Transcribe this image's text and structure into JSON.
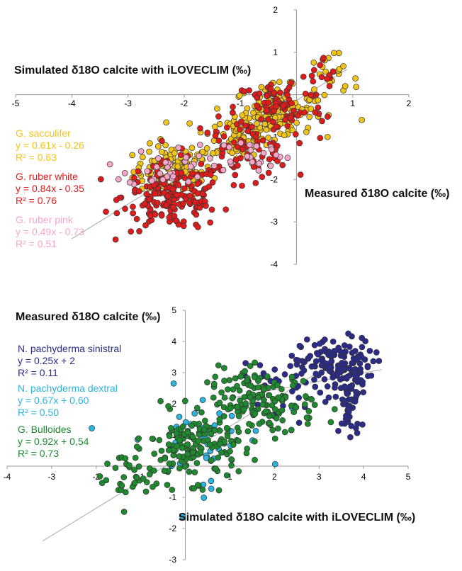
{
  "chart_data": [
    {
      "type": "scatter",
      "xlabel": "Measured δ18O calcite (‰)",
      "ylabel": "Simulated δ18O calcite with iLOVECLIM (‰)",
      "xlim": [
        -5,
        2
      ],
      "ylim": [
        -4,
        2
      ],
      "xticks": [
        "-5",
        "-4",
        "-3",
        "-2",
        "-1",
        "0",
        "1",
        "2"
      ],
      "yticks": [
        "-4",
        "-3",
        "-2",
        "-1",
        "0",
        "1",
        "2"
      ],
      "trend_line": {
        "x": [
          -4.0,
          0.9
        ],
        "y": [
          -3.4,
          0.6
        ]
      },
      "series": [
        {
          "name": "G. sacculifer",
          "equation": "y = 0.61x - 0.26",
          "r2": "R² = 0.63",
          "color": "#f2c418",
          "clusters": [
            {
              "cx": -2.2,
              "cy": -1.8,
              "sx": 0.35,
              "sy": 0.3,
              "n": 120
            },
            {
              "cx": -1.1,
              "cy": -1.0,
              "sx": 0.35,
              "sy": 0.3,
              "n": 60
            },
            {
              "cx": -0.4,
              "cy": -0.4,
              "sx": 0.35,
              "sy": 0.3,
              "n": 130
            },
            {
              "cx": 0.6,
              "cy": 0.3,
              "sx": 0.25,
              "sy": 0.35,
              "n": 25
            }
          ]
        },
        {
          "name": "G. ruber white",
          "equation": "y = 0.84x - 0.35",
          "r2": "R² = 0.76",
          "color": "#e01b1b",
          "clusters": [
            {
              "cx": -2.2,
              "cy": -2.4,
              "sx": 0.45,
              "sy": 0.4,
              "n": 180
            },
            {
              "cx": -1.0,
              "cy": -1.3,
              "sx": 0.45,
              "sy": 0.35,
              "n": 70
            },
            {
              "cx": -0.3,
              "cy": -0.3,
              "sx": 0.4,
              "sy": 0.35,
              "n": 80
            },
            {
              "cx": 0.5,
              "cy": 0.4,
              "sx": 0.2,
              "sy": 0.25,
              "n": 15
            }
          ]
        },
        {
          "name": "G. ruber pink",
          "equation": "y = 0.49x - 0.73",
          "r2": "R² = 0.51",
          "color": "#f4a7c8",
          "clusters": [
            {
              "cx": -2.3,
              "cy": -1.7,
              "sx": 0.35,
              "sy": 0.25,
              "n": 35
            },
            {
              "cx": -0.8,
              "cy": -1.4,
              "sx": 0.35,
              "sy": 0.2,
              "n": 25
            }
          ]
        }
      ]
    },
    {
      "type": "scatter",
      "xlabel": "Simulated δ18O calcite with iLOVECLIM (‰)",
      "ylabel": "Measured δ18O calcite (‰)",
      "xlim": [
        -4,
        5
      ],
      "ylim": [
        -3,
        5
      ],
      "xticks": [
        "-4",
        "-3",
        "-2",
        "-1",
        "0",
        "1",
        "2",
        "3",
        "4",
        "5"
      ],
      "yticks": [
        "-3",
        "-2",
        "-1",
        "0",
        "1",
        "2",
        "3",
        "4",
        "5"
      ],
      "trend_lines": [
        {
          "x": [
            -3.2,
            3.2
          ],
          "y": [
            -2.4,
            3.2
          ]
        },
        {
          "x": [
            0.7,
            4.4
          ],
          "y": [
            2.1,
            3.1
          ]
        }
      ],
      "series": [
        {
          "name": "N. pachyderma sinistral",
          "equation": "y = 0.25x + 2",
          "r2": "R² = 0.11",
          "color": "#2b2b8c",
          "clusters": [
            {
              "cx": 3.4,
              "cy": 3.2,
              "sx": 0.4,
              "sy": 0.45,
              "n": 140
            },
            {
              "cx": 3.7,
              "cy": 1.9,
              "sx": 0.12,
              "sy": 0.6,
              "n": 40
            },
            {
              "cx": 2.3,
              "cy": 2.7,
              "sx": 0.5,
              "sy": 0.5,
              "n": 40
            }
          ]
        },
        {
          "name": "N. pachyderma dextral",
          "equation": "y = 0.67x + 0,60",
          "r2": "R² = 0.50",
          "color": "#2bb5e0",
          "clusters": [
            {
              "cx": 0.3,
              "cy": 0.9,
              "sx": 0.8,
              "sy": 0.8,
              "n": 45
            }
          ]
        },
        {
          "name": "G. Bulloides",
          "equation": "y = 0.92x + 0,54",
          "r2": "R² = 0.73",
          "color": "#1e8a2e",
          "clusters": [
            {
              "cx": 1.7,
              "cy": 2.0,
              "sx": 0.6,
              "sy": 0.55,
              "n": 160
            },
            {
              "cx": 0.2,
              "cy": 0.6,
              "sx": 0.5,
              "sy": 0.55,
              "n": 140
            },
            {
              "cx": -1.2,
              "cy": -0.4,
              "sx": 0.5,
              "sy": 0.5,
              "n": 40
            }
          ]
        }
      ]
    }
  ]
}
